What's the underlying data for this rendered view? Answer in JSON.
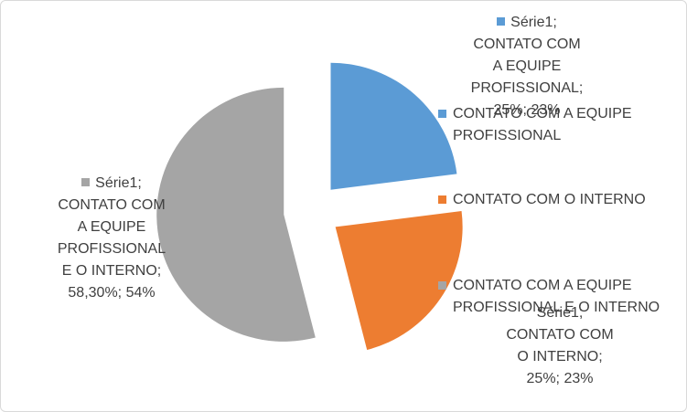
{
  "chart_data": {
    "type": "pie",
    "series_name": "Série1",
    "slices": [
      {
        "category": "CONTATO COM A EQUIPE PROFISSIONAL",
        "value": 23,
        "label_lines": [
          "Série1;",
          "CONTATO COM",
          "A EQUIPE",
          "PROFISSIONAL;",
          "25%; 23%"
        ],
        "color": "#5b9bd5",
        "legend_lines": [
          "CONTATO COM A EQUIPE",
          "PROFISSIONAL"
        ]
      },
      {
        "category": "CONTATO COM O INTERNO",
        "value": 23,
        "label_lines": [
          "Série1;",
          "CONTATO COM",
          "O INTERNO;",
          "25%; 23%"
        ],
        "color": "#ed7d31",
        "legend_lines": [
          "CONTATO COM O INTERNO"
        ]
      },
      {
        "category": "CONTATO COM A EQUIPE PROFISSIONAL E O INTERNO",
        "value": 54,
        "label_lines": [
          "Série1;",
          "CONTATO COM",
          "A EQUIPE",
          "PROFISSIONAL",
          "E O INTERNO;",
          "58,30%; 54%"
        ],
        "color": "#a5a5a5",
        "legend_lines": [
          "CONTATO COM A EQUIPE",
          "PROFISSIONAL E O INTERNO"
        ]
      }
    ],
    "legend_position": "right"
  }
}
